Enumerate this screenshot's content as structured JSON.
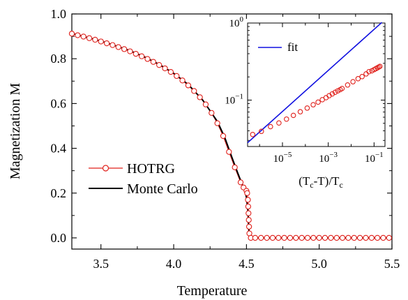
{
  "chart_data": [
    {
      "type": "line",
      "xlabel": "Temperature",
      "ylabel": "Magnetization M",
      "xlim": [
        3.3,
        5.5
      ],
      "ylim": [
        -0.05,
        1.0
      ],
      "xticks": [
        "3.5",
        "4.0",
        "4.5",
        "5.0",
        "5.5"
      ],
      "yticks": [
        "0.0",
        "0.2",
        "0.4",
        "0.6",
        "0.8",
        "1.0"
      ],
      "grid": false,
      "legend_position": "lower-left",
      "series": [
        {
          "name": "HOTRG",
          "style": "open-circle markers with line",
          "color": "#e0201b",
          "x": [
            3.3,
            3.34,
            3.38,
            3.42,
            3.46,
            3.5,
            3.54,
            3.58,
            3.62,
            3.66,
            3.7,
            3.74,
            3.78,
            3.82,
            3.86,
            3.9,
            3.94,
            3.98,
            4.02,
            4.06,
            4.1,
            4.14,
            4.18,
            4.22,
            4.26,
            4.3,
            4.34,
            4.38,
            4.42,
            4.46,
            4.48,
            4.5,
            4.505,
            4.51,
            4.512,
            4.514,
            4.516,
            4.518,
            4.52,
            4.53,
            4.56,
            4.6,
            4.64,
            4.68,
            4.72,
            4.76,
            4.8,
            4.84,
            4.88,
            4.92,
            4.96,
            5.0,
            5.04,
            5.08,
            5.12,
            5.16,
            5.2,
            5.24,
            5.28,
            5.32,
            5.36,
            5.4,
            5.44,
            5.48
          ],
          "y": [
            0.912,
            0.905,
            0.899,
            0.892,
            0.885,
            0.877,
            0.869,
            0.861,
            0.852,
            0.843,
            0.833,
            0.822,
            0.811,
            0.799,
            0.786,
            0.772,
            0.757,
            0.741,
            0.723,
            0.703,
            0.681,
            0.656,
            0.628,
            0.596,
            0.558,
            0.512,
            0.455,
            0.384,
            0.315,
            0.248,
            0.225,
            0.21,
            0.2,
            0.17,
            0.14,
            0.11,
            0.08,
            0.05,
            0.02,
            0.0,
            0.0,
            0.0,
            0.0,
            0.0,
            0.0,
            0.0,
            0.0,
            0.0,
            0.0,
            0.0,
            0.0,
            0.0,
            0.0,
            0.0,
            0.0,
            0.0,
            0.0,
            0.0,
            0.0,
            0.0,
            0.0,
            0.0,
            0.0,
            0.0
          ]
        },
        {
          "name": "Monte Carlo",
          "style": "solid line",
          "color": "#000000",
          "x": [
            3.3,
            3.4,
            3.5,
            3.6,
            3.7,
            3.8,
            3.9,
            4.0,
            4.1,
            4.2,
            4.3,
            4.35,
            4.4,
            4.44,
            4.47,
            4.49,
            4.5,
            4.51,
            4.515,
            4.52,
            5.5
          ],
          "y": [
            0.913,
            0.896,
            0.879,
            0.858,
            0.836,
            0.808,
            0.775,
            0.735,
            0.685,
            0.615,
            0.52,
            0.45,
            0.36,
            0.29,
            0.24,
            0.21,
            0.18,
            0.12,
            0.05,
            0.0,
            0.0
          ]
        }
      ]
    },
    {
      "type": "line",
      "xlabel": "(T_c-T)/T_c",
      "ylabel": "",
      "xscale": "log",
      "yscale": "log",
      "xlim": [
        3e-07,
        0.3
      ],
      "ylim": [
        0.025,
        1.0
      ],
      "xticks": [
        "10^-5",
        "10^-3",
        "10^-1"
      ],
      "yticks": [
        "10^-1",
        "10^0"
      ],
      "grid": false,
      "legend_position": "top-left",
      "series": [
        {
          "name": "fit",
          "style": "solid line",
          "color": "#1010e0",
          "x": [
            3e-07,
            0.22
          ],
          "y": [
            0.028,
            1.02
          ]
        },
        {
          "name": "",
          "style": "open-circle markers",
          "color": "#e0201b",
          "x": [
            5e-07,
            1.2e-06,
            3e-06,
            7e-06,
            1.5e-05,
            3e-05,
            6e-05,
            0.00012,
            0.00022,
            0.00036,
            0.00055,
            0.0008,
            0.0011,
            0.0015,
            0.002,
            0.0026,
            0.0033,
            0.004,
            0.007,
            0.012,
            0.02,
            0.03,
            0.045,
            0.06,
            0.08,
            0.1,
            0.12,
            0.14,
            0.16,
            0.18
          ],
          "y": [
            0.0358,
            0.0393,
            0.0453,
            0.0505,
            0.0567,
            0.0634,
            0.0706,
            0.0788,
            0.087,
            0.0942,
            0.1012,
            0.1075,
            0.1142,
            0.1204,
            0.1264,
            0.1319,
            0.1367,
            0.1413,
            0.1571,
            0.173,
            0.1895,
            0.2018,
            0.2188,
            0.234,
            0.24,
            0.2485,
            0.2558,
            0.2625,
            0.2685,
            0.274
          ]
        }
      ]
    }
  ],
  "legend": {
    "hotrg_label": "HOTRG",
    "mc_label": "Monte Carlo"
  },
  "inset_legend": {
    "fit_label": "fit"
  },
  "colors": {
    "hotrg": "#e0201b",
    "monte_carlo": "#000000",
    "fit": "#1010e0"
  }
}
